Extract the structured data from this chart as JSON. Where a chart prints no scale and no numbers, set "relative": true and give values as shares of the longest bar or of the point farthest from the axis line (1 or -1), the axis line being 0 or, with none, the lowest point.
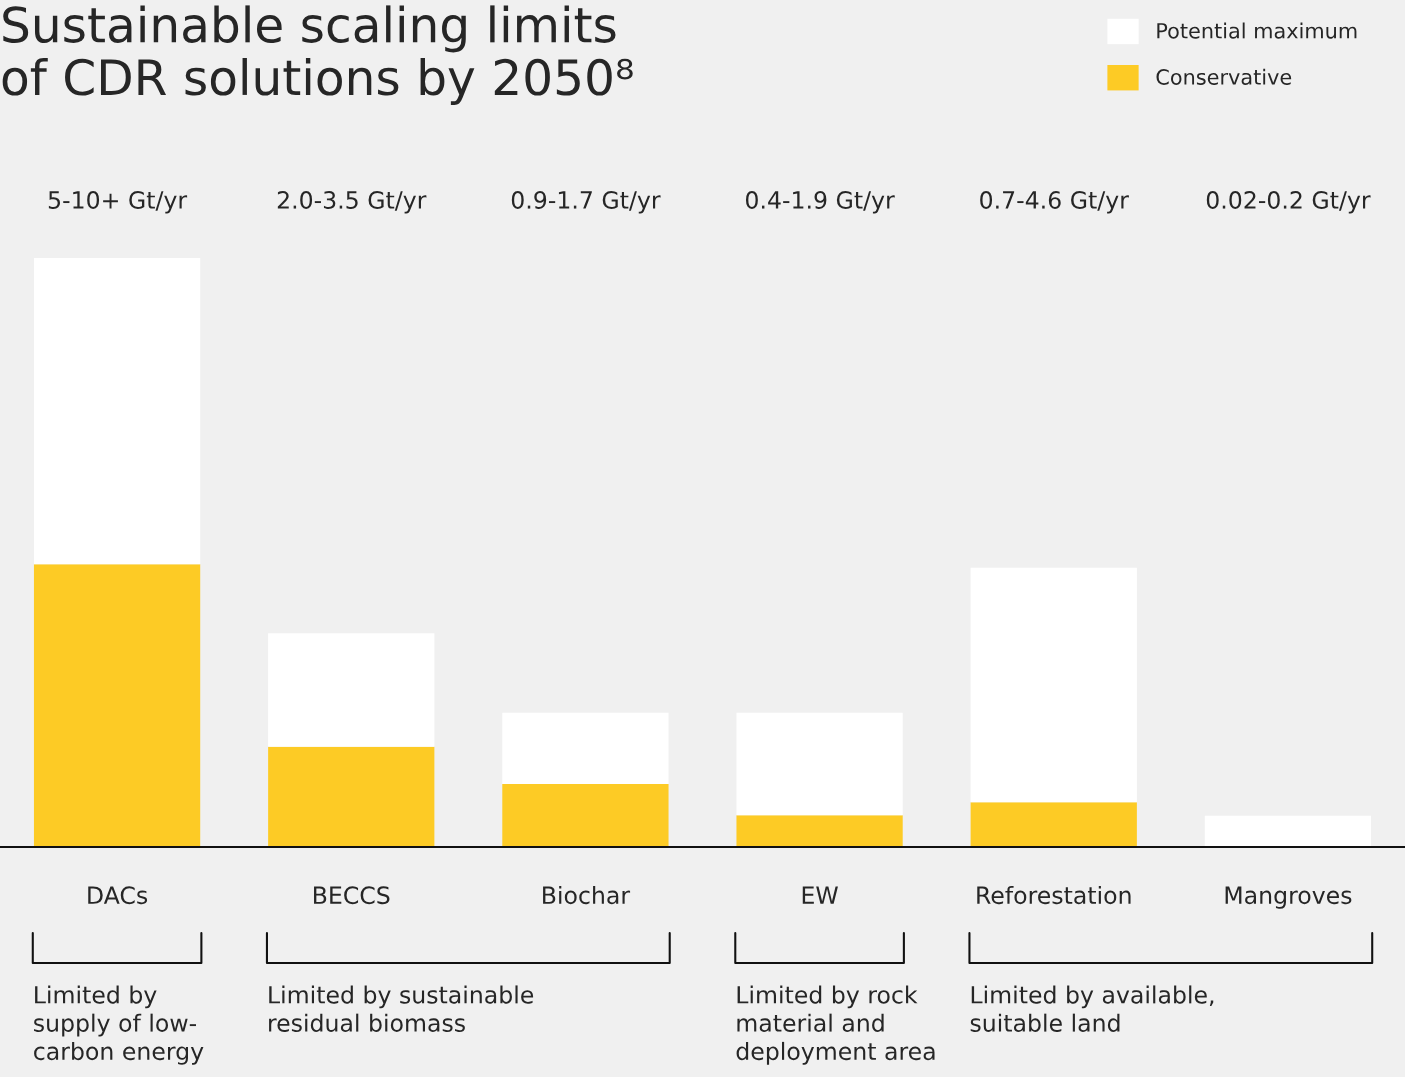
{
  "chart_data": {
    "type": "bar",
    "title": "Sustainable scaling limits\nof CDR solutions by 2050⁸",
    "categories": [
      "DACs",
      "BECCS",
      "Biochar",
      "EW",
      "Reforestation",
      "Mangroves"
    ],
    "relative": true,
    "stacked": true,
    "legend": "top right",
    "grid": false,
    "series": [
      {
        "name": "Conservative",
        "color": "#fdcb25",
        "values": [
          0.48,
          0.17,
          0.107,
          0.054,
          0.076,
          0
        ]
      },
      {
        "name": "Potential maximum",
        "color": "#ffffff",
        "values": [
          0.52,
          0.193,
          0.121,
          0.174,
          0.398,
          0.053
        ]
      }
    ],
    "annotations": [
      "5-10+ Gt/yr",
      "2.0-3.5 Gt/yr",
      "0.9-1.7 Gt/yr",
      "0.4-1.9 Gt/yr",
      "0.7-4.6 Gt/yr",
      "0.02-0.2 Gt/yr",
      "Limited by\nsupply of low-\ncarbon energy",
      "Limited by sustainable\nresidual biomass",
      "Limited by rock\nmaterial and\ndeployment area",
      "Limited by available,\nsuitable land"
    ]
  }
}
